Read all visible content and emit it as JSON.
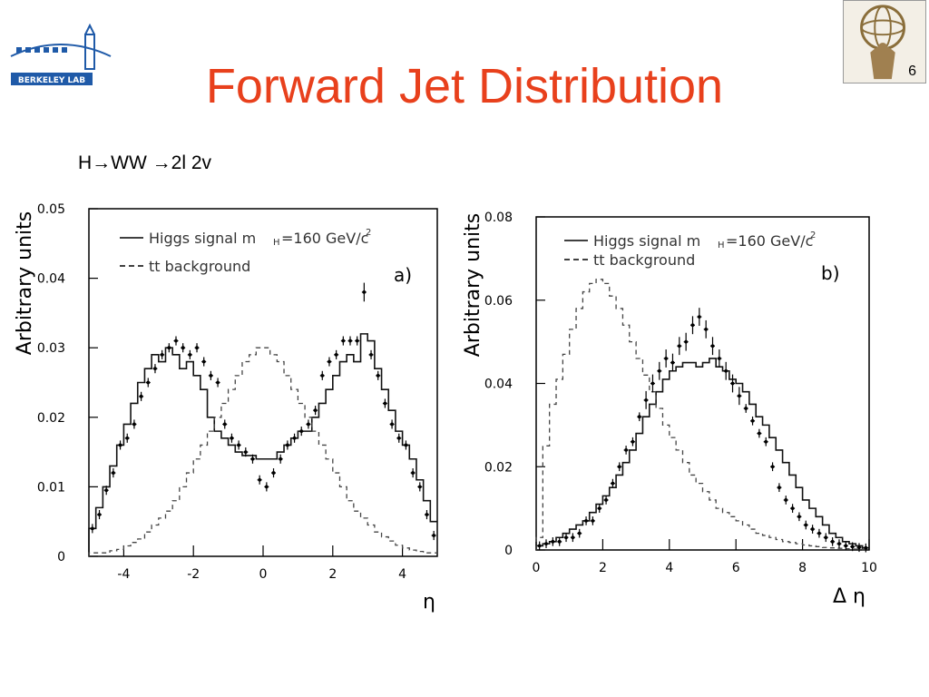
{
  "slide": {
    "title": "Forward Jet Distribution",
    "subtitle": "H→WW →2l 2v",
    "number": "6",
    "logo_text": "BERKELEY LAB"
  },
  "colors": {
    "title": "#e8401c",
    "logo_blue": "#1f5aa8"
  },
  "chart_data": [
    {
      "type": "line",
      "panel": "a)",
      "xlabel": "η",
      "ylabel": "Arbitrary units",
      "xlim": [
        -5,
        5
      ],
      "ylim": [
        0,
        0.05
      ],
      "xticks": [
        "-4",
        "-2",
        "0",
        "2",
        "4"
      ],
      "xtick_values": [
        -4,
        -2,
        0,
        2,
        4
      ],
      "yticks": [
        "0",
        "0.01",
        "0.02",
        "0.03",
        "0.04",
        "0.05"
      ],
      "ytick_values": [
        0,
        0.01,
        0.02,
        0.03,
        0.04,
        0.05
      ],
      "legend": [
        "Higgs signal m",
        "tt background"
      ],
      "legend_placement": "top-left",
      "series": [
        {
          "name": "Higgs signal mH=160 GeV/c2",
          "style": "solid-histogram",
          "x": [
            -5.0,
            -4.8,
            -4.6,
            -4.4,
            -4.2,
            -4.0,
            -3.8,
            -3.6,
            -3.4,
            -3.2,
            -3.0,
            -2.8,
            -2.6,
            -2.4,
            -2.2,
            -2.0,
            -1.8,
            -1.6,
            -1.4,
            -1.2,
            -1.0,
            -0.8,
            -0.6,
            -0.4,
            -0.2,
            0.0,
            0.2,
            0.4,
            0.6,
            0.8,
            1.0,
            1.2,
            1.4,
            1.6,
            1.8,
            2.0,
            2.2,
            2.4,
            2.6,
            2.8,
            3.0,
            3.2,
            3.4,
            3.6,
            3.8,
            4.0,
            4.2,
            4.4,
            4.6,
            4.8
          ],
          "values": [
            0.004,
            0.007,
            0.01,
            0.013,
            0.016,
            0.019,
            0.022,
            0.025,
            0.027,
            0.029,
            0.028,
            0.03,
            0.029,
            0.027,
            0.028,
            0.026,
            0.024,
            0.02,
            0.018,
            0.017,
            0.016,
            0.015,
            0.0145,
            0.0145,
            0.014,
            0.014,
            0.014,
            0.015,
            0.016,
            0.017,
            0.018,
            0.018,
            0.02,
            0.022,
            0.024,
            0.026,
            0.028,
            0.029,
            0.028,
            0.032,
            0.031,
            0.027,
            0.024,
            0.021,
            0.018,
            0.016,
            0.014,
            0.011,
            0.008,
            0.005
          ]
        },
        {
          "name": "tt background",
          "style": "dashed-histogram",
          "x": [
            -5.0,
            -4.8,
            -4.6,
            -4.4,
            -4.2,
            -4.0,
            -3.8,
            -3.6,
            -3.4,
            -3.2,
            -3.0,
            -2.8,
            -2.6,
            -2.4,
            -2.2,
            -2.0,
            -1.8,
            -1.6,
            -1.4,
            -1.2,
            -1.0,
            -0.8,
            -0.6,
            -0.4,
            -0.2,
            0.0,
            0.2,
            0.4,
            0.6,
            0.8,
            1.0,
            1.2,
            1.4,
            1.6,
            1.8,
            2.0,
            2.2,
            2.4,
            2.6,
            2.8,
            3.0,
            3.2,
            3.4,
            3.6,
            3.8,
            4.0,
            4.2,
            4.4,
            4.6,
            4.8
          ],
          "values": [
            0.0005,
            0.0005,
            0.0005,
            0.0008,
            0.001,
            0.0015,
            0.002,
            0.0025,
            0.0035,
            0.0045,
            0.0055,
            0.0065,
            0.008,
            0.01,
            0.012,
            0.014,
            0.016,
            0.018,
            0.02,
            0.022,
            0.024,
            0.026,
            0.028,
            0.029,
            0.03,
            0.03,
            0.029,
            0.028,
            0.026,
            0.024,
            0.022,
            0.02,
            0.018,
            0.016,
            0.014,
            0.012,
            0.01,
            0.008,
            0.0065,
            0.0055,
            0.0045,
            0.0035,
            0.0028,
            0.0022,
            0.0016,
            0.0012,
            0.0009,
            0.0007,
            0.0005,
            0.0005
          ]
        },
        {
          "name": "data points",
          "style": "points-with-error-bars",
          "x": [
            -4.9,
            -4.7,
            -4.5,
            -4.3,
            -4.1,
            -3.9,
            -3.7,
            -3.5,
            -3.3,
            -3.1,
            -2.9,
            -2.7,
            -2.5,
            -2.3,
            -2.1,
            -1.9,
            -1.7,
            -1.5,
            -1.3,
            -1.1,
            -0.9,
            -0.7,
            -0.5,
            -0.3,
            -0.1,
            0.1,
            0.3,
            0.5,
            0.7,
            0.9,
            1.1,
            1.3,
            1.5,
            1.7,
            1.9,
            2.1,
            2.3,
            2.5,
            2.7,
            2.9,
            3.1,
            3.3,
            3.5,
            3.7,
            3.9,
            4.1,
            4.3,
            4.5,
            4.7,
            4.9
          ],
          "values": [
            0.004,
            0.006,
            0.0095,
            0.012,
            0.016,
            0.017,
            0.019,
            0.023,
            0.025,
            0.027,
            0.029,
            0.03,
            0.031,
            0.03,
            0.029,
            0.03,
            0.028,
            0.026,
            0.025,
            0.019,
            0.017,
            0.016,
            0.015,
            0.014,
            0.011,
            0.01,
            0.012,
            0.014,
            0.016,
            0.017,
            0.018,
            0.019,
            0.021,
            0.026,
            0.028,
            0.029,
            0.031,
            0.031,
            0.031,
            0.038,
            0.029,
            0.026,
            0.022,
            0.019,
            0.017,
            0.016,
            0.012,
            0.01,
            0.006,
            0.003
          ]
        }
      ]
    },
    {
      "type": "line",
      "panel": "b)",
      "xlabel": "Δ η",
      "ylabel": "Arbitrary units",
      "xlim": [
        0,
        10
      ],
      "ylim": [
        0,
        0.08
      ],
      "xticks": [
        "0",
        "2",
        "4",
        "6",
        "8",
        "10"
      ],
      "xtick_values": [
        0,
        2,
        4,
        6,
        8,
        10
      ],
      "yticks": [
        "0",
        "0.02",
        "0.04",
        "0.06",
        "0.08"
      ],
      "ytick_values": [
        0,
        0.02,
        0.04,
        0.06,
        0.08
      ],
      "legend": [
        "Higgs signal m",
        "tt background"
      ],
      "legend_placement": "top-left",
      "series": [
        {
          "name": "Higgs signal mH=160 GeV/c2",
          "style": "solid-histogram",
          "x": [
            0.0,
            0.2,
            0.4,
            0.6,
            0.8,
            1.0,
            1.2,
            1.4,
            1.6,
            1.8,
            2.0,
            2.2,
            2.4,
            2.6,
            2.8,
            3.0,
            3.2,
            3.4,
            3.6,
            3.8,
            4.0,
            4.2,
            4.4,
            4.6,
            4.8,
            5.0,
            5.2,
            5.4,
            5.6,
            5.8,
            6.0,
            6.2,
            6.4,
            6.6,
            6.8,
            7.0,
            7.2,
            7.4,
            7.6,
            7.8,
            8.0,
            8.2,
            8.4,
            8.6,
            8.8,
            9.0,
            9.2,
            9.4,
            9.6,
            9.8
          ],
          "values": [
            0.001,
            0.0015,
            0.002,
            0.003,
            0.004,
            0.005,
            0.006,
            0.007,
            0.009,
            0.011,
            0.013,
            0.015,
            0.018,
            0.021,
            0.024,
            0.028,
            0.032,
            0.035,
            0.038,
            0.041,
            0.043,
            0.044,
            0.045,
            0.045,
            0.044,
            0.045,
            0.046,
            0.044,
            0.043,
            0.041,
            0.04,
            0.038,
            0.035,
            0.032,
            0.03,
            0.027,
            0.024,
            0.021,
            0.018,
            0.015,
            0.012,
            0.01,
            0.008,
            0.006,
            0.004,
            0.003,
            0.002,
            0.0015,
            0.001,
            0.0005
          ]
        },
        {
          "name": "tt background",
          "style": "dashed-histogram",
          "x": [
            0.0,
            0.2,
            0.4,
            0.6,
            0.8,
            1.0,
            1.2,
            1.4,
            1.6,
            1.8,
            2.0,
            2.2,
            2.4,
            2.6,
            2.8,
            3.0,
            3.2,
            3.4,
            3.6,
            3.8,
            4.0,
            4.2,
            4.4,
            4.6,
            4.8,
            5.0,
            5.2,
            5.4,
            5.6,
            5.8,
            6.0,
            6.2,
            6.4,
            6.6,
            6.8,
            7.0,
            7.2,
            7.4,
            7.6,
            7.8,
            8.0,
            8.2,
            8.4,
            8.6,
            8.8,
            9.0,
            9.2,
            9.4,
            9.6,
            9.8
          ],
          "values": [
            0.003,
            0.025,
            0.035,
            0.041,
            0.047,
            0.053,
            0.058,
            0.062,
            0.064,
            0.065,
            0.064,
            0.061,
            0.058,
            0.054,
            0.05,
            0.046,
            0.042,
            0.038,
            0.034,
            0.03,
            0.027,
            0.024,
            0.021,
            0.018,
            0.016,
            0.014,
            0.012,
            0.01,
            0.009,
            0.008,
            0.007,
            0.006,
            0.005,
            0.004,
            0.0035,
            0.003,
            0.0025,
            0.002,
            0.0018,
            0.0015,
            0.0012,
            0.001,
            0.0008,
            0.0006,
            0.0005,
            0.0004,
            0.0003,
            0.0002,
            0.0002,
            0.0001
          ]
        },
        {
          "name": "data points",
          "style": "points-with-error-bars",
          "x": [
            0.1,
            0.3,
            0.5,
            0.7,
            0.9,
            1.1,
            1.3,
            1.5,
            1.7,
            1.9,
            2.1,
            2.3,
            2.5,
            2.7,
            2.9,
            3.1,
            3.3,
            3.5,
            3.7,
            3.9,
            4.1,
            4.3,
            4.5,
            4.7,
            4.9,
            5.1,
            5.3,
            5.5,
            5.7,
            5.9,
            6.1,
            6.3,
            6.5,
            6.7,
            6.9,
            7.1,
            7.3,
            7.5,
            7.7,
            7.9,
            8.1,
            8.3,
            8.5,
            8.7,
            8.9,
            9.1,
            9.3,
            9.5,
            9.7,
            9.9
          ],
          "values": [
            0.001,
            0.0015,
            0.002,
            0.002,
            0.003,
            0.003,
            0.004,
            0.007,
            0.007,
            0.01,
            0.012,
            0.016,
            0.02,
            0.024,
            0.026,
            0.032,
            0.036,
            0.04,
            0.043,
            0.046,
            0.045,
            0.049,
            0.05,
            0.054,
            0.056,
            0.053,
            0.049,
            0.046,
            0.043,
            0.04,
            0.037,
            0.034,
            0.031,
            0.028,
            0.026,
            0.02,
            0.015,
            0.012,
            0.01,
            0.008,
            0.006,
            0.005,
            0.004,
            0.003,
            0.002,
            0.0015,
            0.001,
            0.0008,
            0.0006,
            0.0005
          ]
        }
      ]
    }
  ]
}
